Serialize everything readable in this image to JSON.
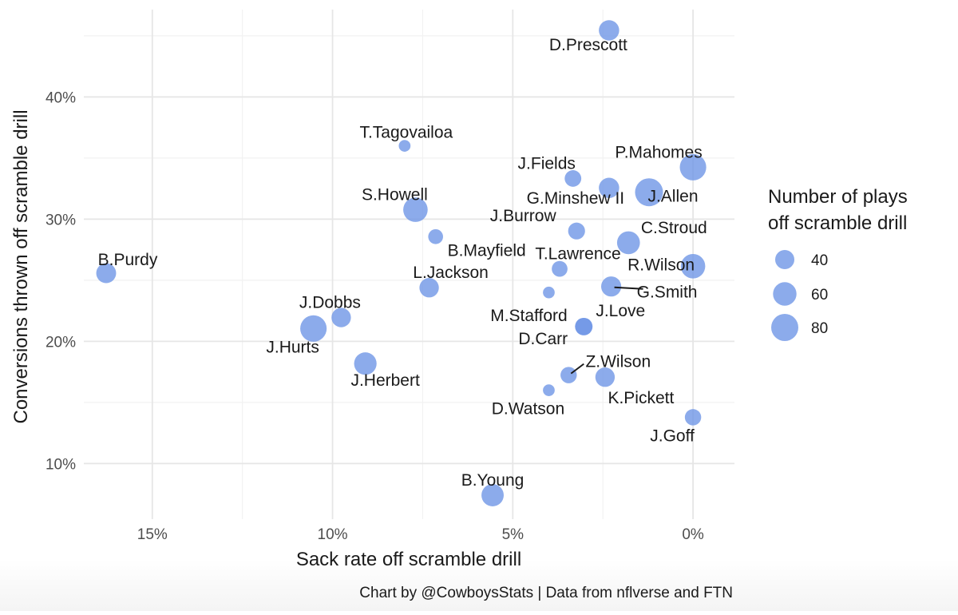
{
  "chart_data": {
    "type": "scatter",
    "title": "",
    "xlabel": "Sack rate off scramble drill",
    "ylabel": "Conversions thrown off scramble drill",
    "x_reversed": true,
    "xlim": [
      0.169,
      -0.0115
    ],
    "ylim": [
      0.0545,
      0.4715
    ],
    "x_ticks": [
      0.15,
      0.1,
      0.05,
      0.0
    ],
    "x_tick_labels": [
      "15%",
      "10%",
      "5%",
      "0%"
    ],
    "y_ticks": [
      0.1,
      0.2,
      0.3,
      0.4
    ],
    "y_tick_labels": [
      "10%",
      "20%",
      "30%",
      "40%"
    ],
    "grid": true,
    "point_color": "#6f96e6",
    "legend": {
      "title_lines": [
        "Number of plays",
        "off scramble drill"
      ],
      "placement": "right",
      "sizes": [
        40,
        60,
        80
      ],
      "labels": [
        "40",
        "60",
        "80"
      ]
    },
    "caption": "Chart by @CowboysStats | Data from nflverse and FTN",
    "points": [
      {
        "name": "D.Prescott",
        "x": 0.0233,
        "y": 0.4545,
        "plays": 45
      },
      {
        "name": "T.Tagovailoa",
        "x": 0.08,
        "y": 0.36,
        "plays": 15
      },
      {
        "name": "P.Mahomes",
        "x": 0.0,
        "y": 0.3425,
        "plays": 76
      },
      {
        "name": "J.Fields",
        "x": 0.0333,
        "y": 0.3333,
        "plays": 30
      },
      {
        "name": "G.Minshew II",
        "x": 0.0233,
        "y": 0.3256,
        "plays": 45
      },
      {
        "name": "J.Allen",
        "x": 0.0122,
        "y": 0.322,
        "plays": 85
      },
      {
        "name": "S.Howell",
        "x": 0.077,
        "y": 0.3077,
        "plays": 65
      },
      {
        "name": "J.Burrow",
        "x": 0.0323,
        "y": 0.2903,
        "plays": 31
      },
      {
        "name": "B.Mayfield",
        "x": 0.0714,
        "y": 0.2857,
        "plays": 24
      },
      {
        "name": "C.Stroud",
        "x": 0.0179,
        "y": 0.2807,
        "plays": 57
      },
      {
        "name": "R.Wilson",
        "x": 0.0,
        "y": 0.2615,
        "plays": 65
      },
      {
        "name": "T.Lawrence",
        "x": 0.037,
        "y": 0.2593,
        "plays": 27
      },
      {
        "name": "B.Purdy",
        "x": 0.1628,
        "y": 0.2558,
        "plays": 43
      },
      {
        "name": "L.Jackson",
        "x": 0.0732,
        "y": 0.2439,
        "plays": 41
      },
      {
        "name": "G.Smith",
        "x": 0.0227,
        "y": 0.2449,
        "plays": 44
      },
      {
        "name": "M.Stafford",
        "x": 0.04,
        "y": 0.24,
        "plays": 15
      },
      {
        "name": "J.Dobbs",
        "x": 0.0976,
        "y": 0.2195,
        "plays": 41
      },
      {
        "name": "J.Love",
        "x": 0.0303,
        "y": 0.2121,
        "plays": 33
      },
      {
        "name": "D.Carr",
        "x": 0.0303,
        "y": 0.2121,
        "plays": 33
      },
      {
        "name": "J.Hurts",
        "x": 0.1053,
        "y": 0.2105,
        "plays": 76
      },
      {
        "name": "J.Herbert",
        "x": 0.0909,
        "y": 0.1818,
        "plays": 55
      },
      {
        "name": "Z.Wilson",
        "x": 0.0345,
        "y": 0.1724,
        "plays": 29
      },
      {
        "name": "K.Pickett",
        "x": 0.0244,
        "y": 0.1707,
        "plays": 41
      },
      {
        "name": "D.Watson",
        "x": 0.04,
        "y": 0.16,
        "plays": 15
      },
      {
        "name": "J.Goff",
        "x": 0.0,
        "y": 0.1379,
        "plays": 29
      },
      {
        "name": "B.Young",
        "x": 0.0556,
        "y": 0.0741,
        "plays": 54
      }
    ]
  }
}
